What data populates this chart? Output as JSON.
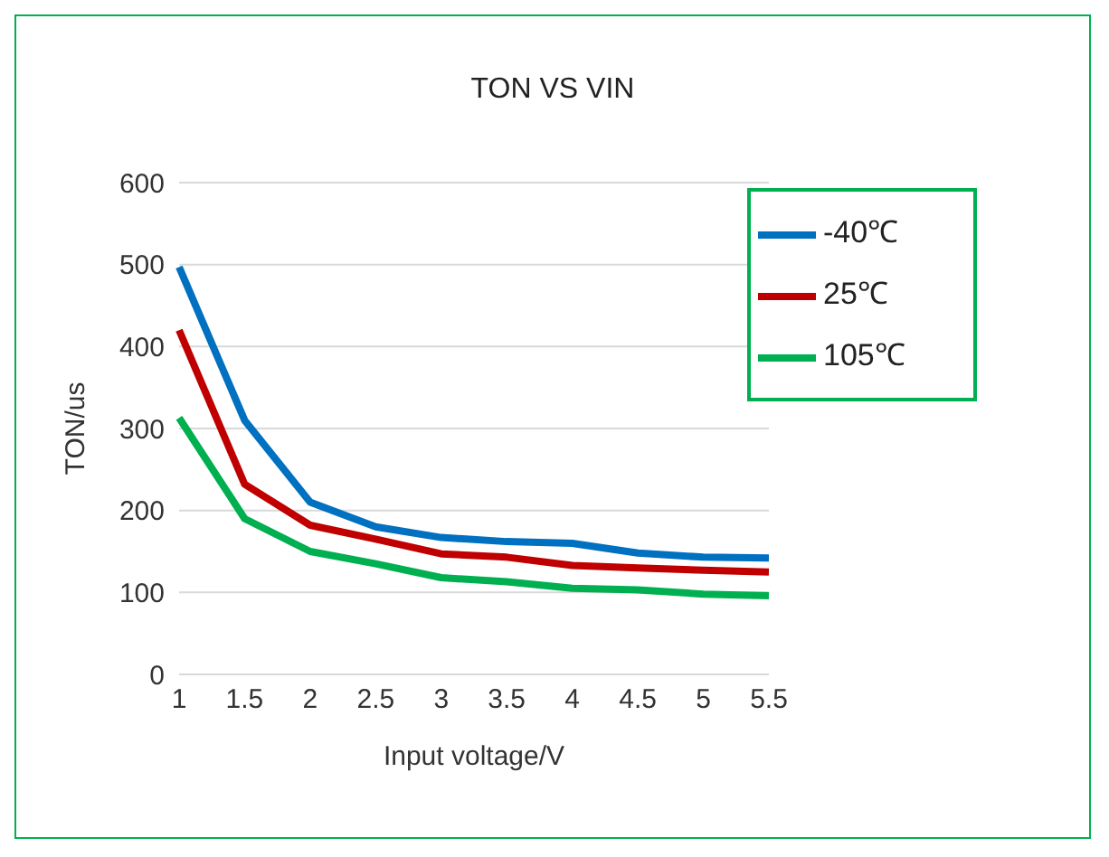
{
  "chart_data": {
    "type": "line",
    "title": "TON VS VIN",
    "xlabel": "Input voltage/V",
    "ylabel": "TON/us",
    "categories": [
      "1",
      "1.5",
      "2",
      "2.5",
      "3",
      "3.5",
      "4",
      "4.5",
      "5",
      "5.5"
    ],
    "series": [
      {
        "name": "-40℃",
        "color": "#0070c0",
        "values": [
          497,
          310,
          210,
          180,
          167,
          162,
          160,
          148,
          143,
          142
        ]
      },
      {
        "name": "25℃",
        "color": "#c00000",
        "values": [
          420,
          232,
          182,
          165,
          147,
          143,
          133,
          130,
          127,
          125
        ]
      },
      {
        "name": "105℃",
        "color": "#00b050",
        "values": [
          313,
          190,
          150,
          135,
          118,
          113,
          105,
          103,
          98,
          96
        ]
      }
    ],
    "ylim": [
      0,
      600
    ],
    "yticks": [
      0,
      100,
      200,
      300,
      400,
      500,
      600
    ],
    "grid": "y",
    "legend": "top right",
    "marker": "none",
    "line_style": "solid"
  }
}
